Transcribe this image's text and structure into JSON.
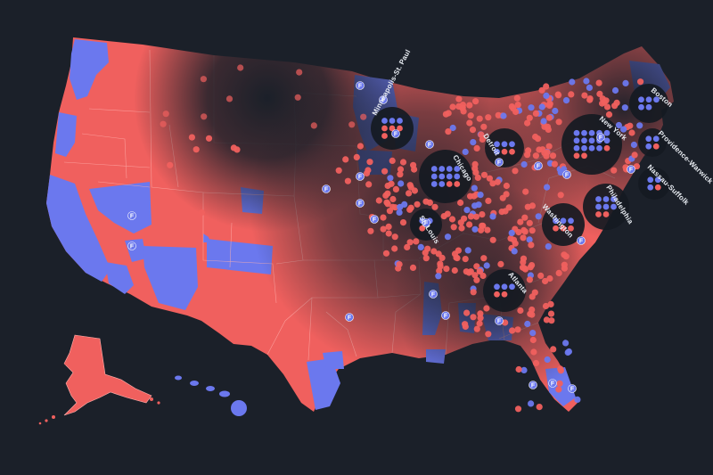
{
  "colors": {
    "background": "#1b2029",
    "republican": "#f0605e",
    "democrat": "#6b78ee",
    "district_line": "#ffb0ad",
    "bubble_dark": "#151a22"
  },
  "flip_marker": "F",
  "cities": [
    {
      "name": "Minneapolis-St. Paul"
    },
    {
      "name": "Chicago"
    },
    {
      "name": "Detroit"
    },
    {
      "name": "St. Louis"
    },
    {
      "name": "Atlanta"
    },
    {
      "name": "Washington"
    },
    {
      "name": "Philadelphia"
    },
    {
      "name": "New York"
    },
    {
      "name": "Boston"
    },
    {
      "name": "Providence-Warwick"
    },
    {
      "name": "Nassau-Suffolk"
    }
  ]
}
